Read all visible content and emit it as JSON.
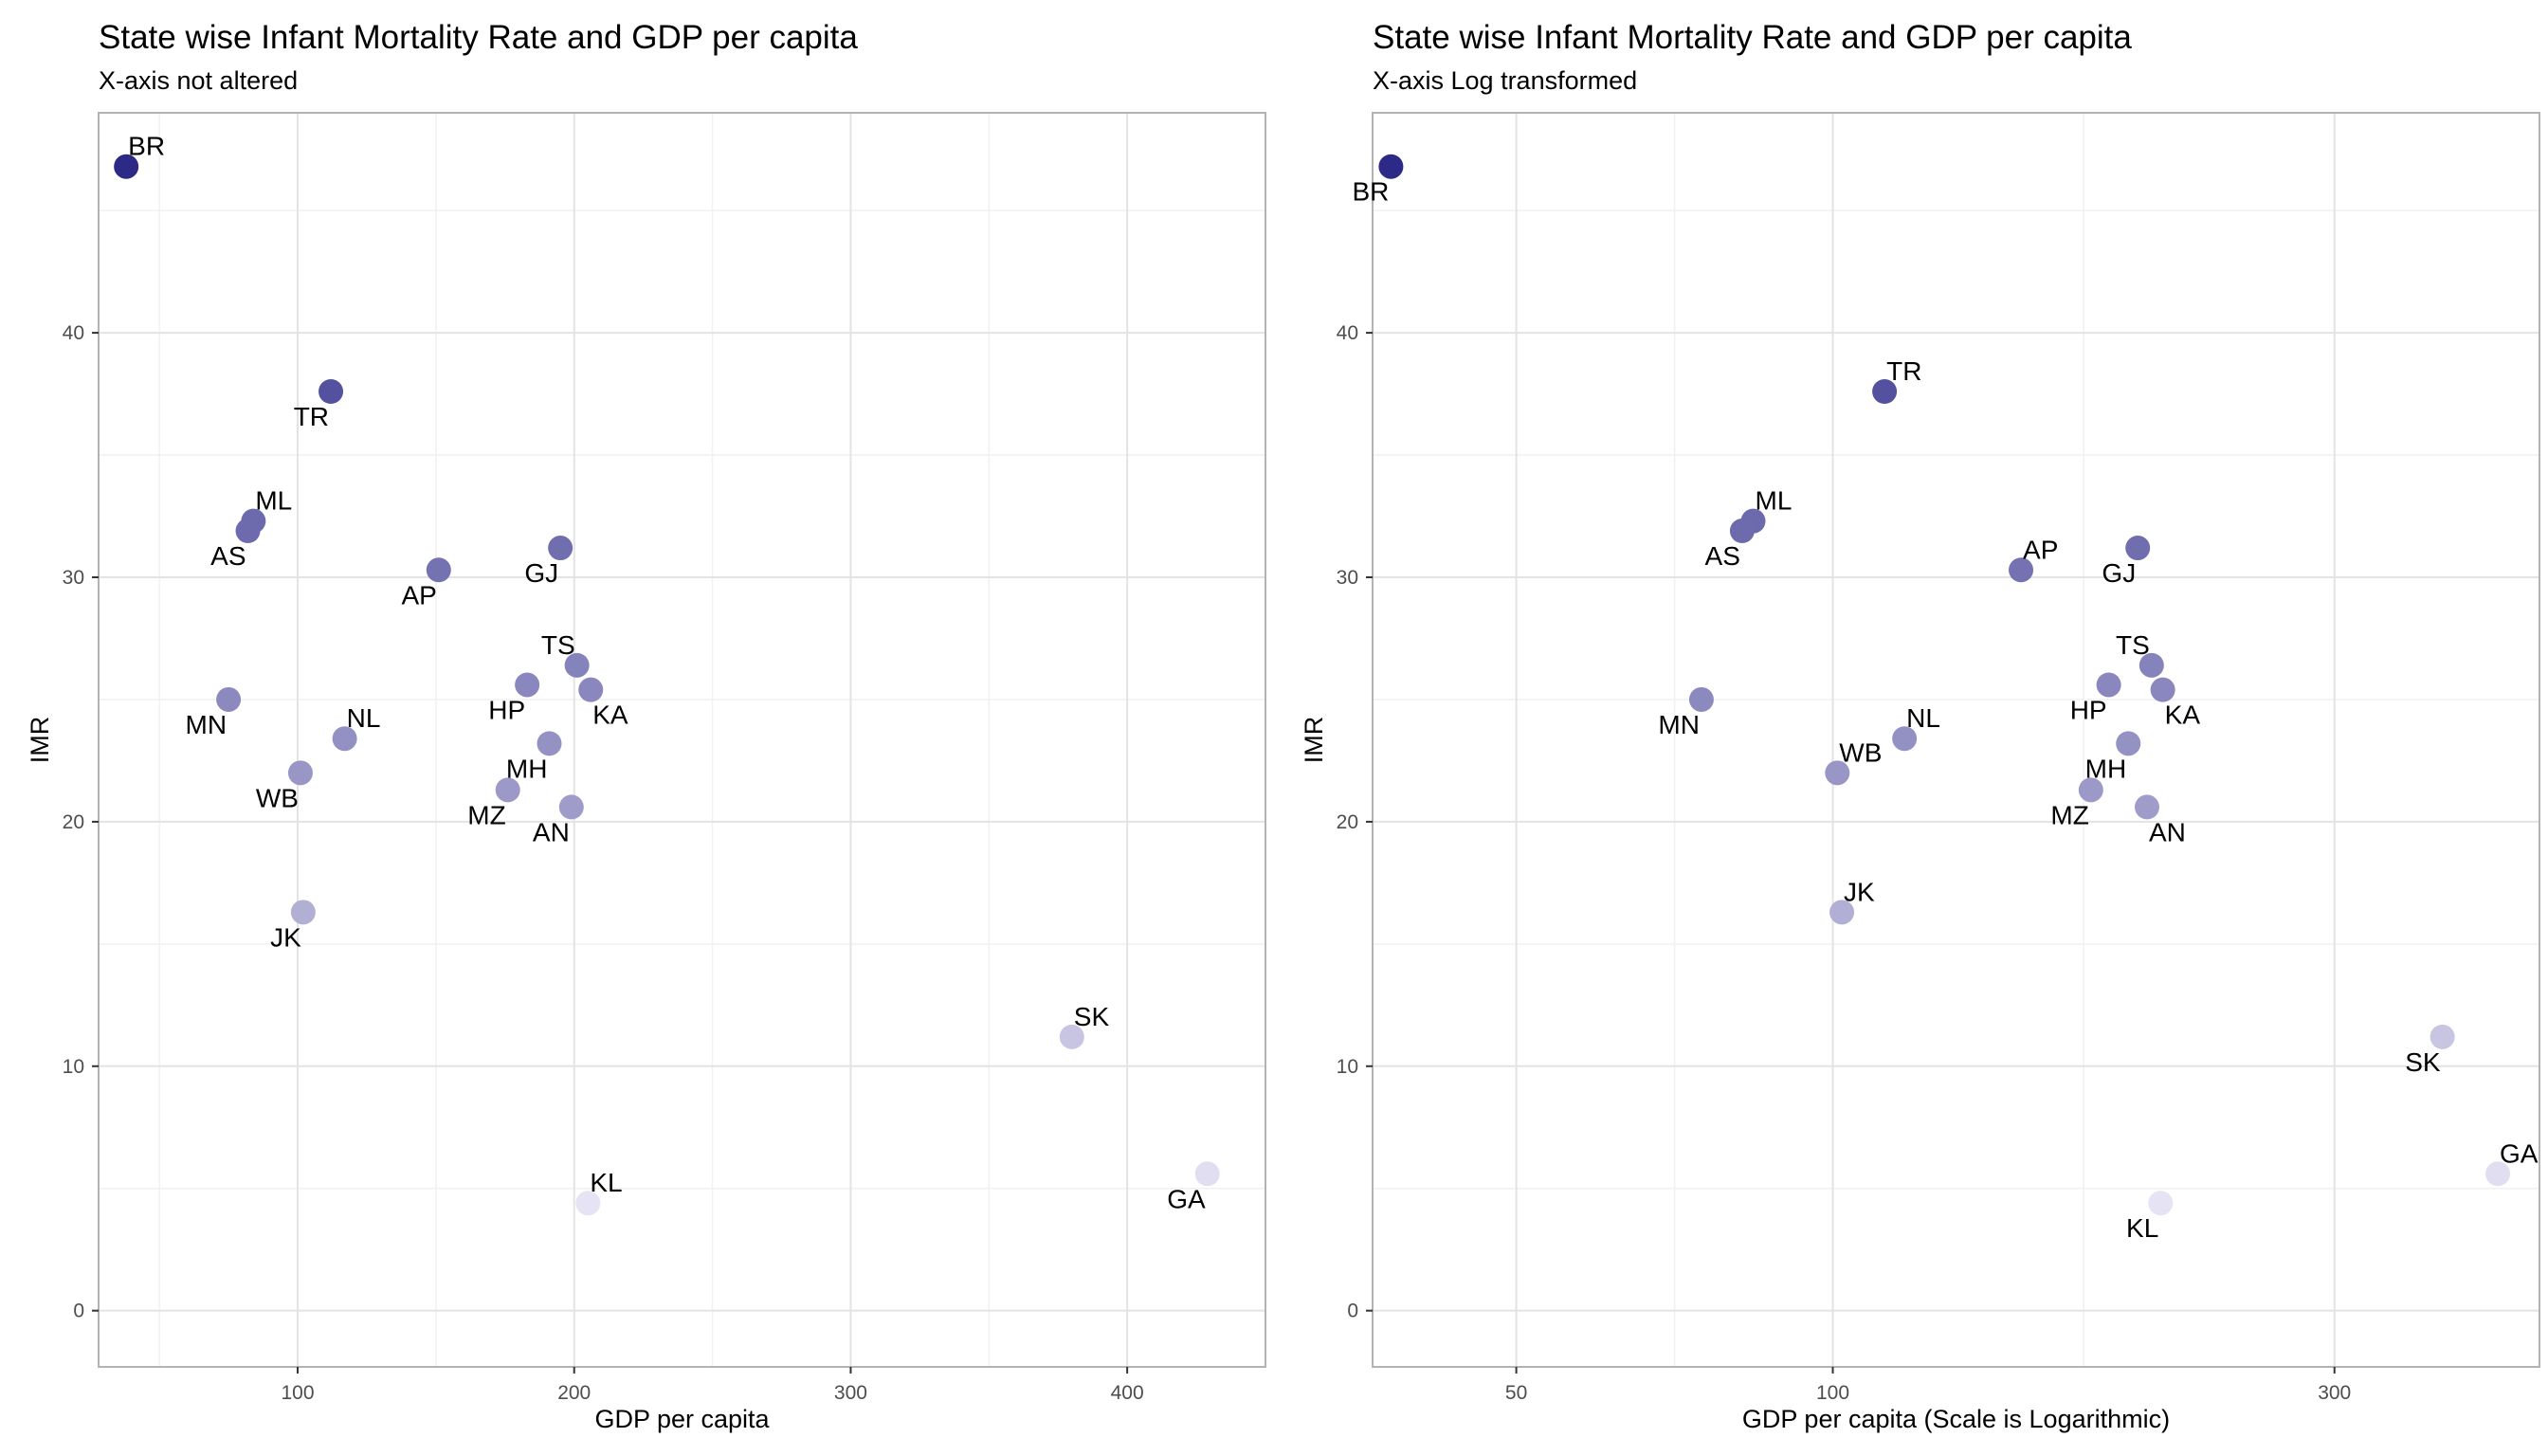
{
  "chart_data": [
    {
      "type": "scatter",
      "title": "State wise Infant Mortality Rate and GDP per capita",
      "subtitle": "X-axis not altered",
      "xlabel": "GDP per capita",
      "ylabel": "IMR",
      "xscale": "linear",
      "xlim": [
        28,
        450
      ],
      "ylim": [
        -2.3,
        49
      ],
      "xticks": [
        100,
        200,
        300,
        400
      ],
      "yticks": [
        0,
        10,
        20,
        30,
        40
      ],
      "grid": true,
      "points": [
        {
          "label": "BR",
          "x": 38,
          "y": 46.8,
          "anchor": "above-right"
        },
        {
          "label": "TR",
          "x": 112,
          "y": 37.6,
          "anchor": "below-left"
        },
        {
          "label": "ML",
          "x": 84,
          "y": 32.3,
          "anchor": "above-right"
        },
        {
          "label": "AS",
          "x": 82,
          "y": 31.9,
          "anchor": "below-left"
        },
        {
          "label": "AP",
          "x": 151,
          "y": 30.3,
          "anchor": "below-left"
        },
        {
          "label": "GJ",
          "x": 195,
          "y": 31.2,
          "anchor": "below-left"
        },
        {
          "label": "TS",
          "x": 201,
          "y": 26.4,
          "anchor": "above-left"
        },
        {
          "label": "HP",
          "x": 183,
          "y": 25.6,
          "anchor": "below-left"
        },
        {
          "label": "KA",
          "x": 206,
          "y": 25.4,
          "anchor": "below-right"
        },
        {
          "label": "MN",
          "x": 75,
          "y": 25.0,
          "anchor": "below-left"
        },
        {
          "label": "NL",
          "x": 117,
          "y": 23.4,
          "anchor": "above-right"
        },
        {
          "label": "MH",
          "x": 191,
          "y": 23.2,
          "anchor": "below-left"
        },
        {
          "label": "WB",
          "x": 101,
          "y": 22.0,
          "anchor": "below-left"
        },
        {
          "label": "MZ",
          "x": 176,
          "y": 21.3,
          "anchor": "below-left"
        },
        {
          "label": "AN",
          "x": 199,
          "y": 20.6,
          "anchor": "below-left"
        },
        {
          "label": "JK",
          "x": 102,
          "y": 16.3,
          "anchor": "below-left"
        },
        {
          "label": "SK",
          "x": 380,
          "y": 11.2,
          "anchor": "above-right"
        },
        {
          "label": "KL",
          "x": 205,
          "y": 4.4,
          "anchor": "above-right"
        },
        {
          "label": "GA",
          "x": 429,
          "y": 5.6,
          "anchor": "below-left"
        }
      ]
    },
    {
      "type": "scatter",
      "title": "State wise Infant Mortality Rate and GDP per capita",
      "subtitle": "X-axis Log transformed",
      "xlabel": "GDP per capita (Scale is Logarithmic)",
      "ylabel": "IMR",
      "xscale": "log",
      "xlim": [
        36.5,
        470
      ],
      "ylim": [
        -2.3,
        49
      ],
      "xticks": [
        50,
        100,
        300
      ],
      "yticks": [
        0,
        10,
        20,
        30,
        40
      ],
      "grid": true,
      "points": [
        {
          "label": "BR",
          "x": 38,
          "y": 46.8,
          "anchor": "below-left"
        },
        {
          "label": "TR",
          "x": 112,
          "y": 37.6,
          "anchor": "above-right"
        },
        {
          "label": "ML",
          "x": 84,
          "y": 32.3,
          "anchor": "above-right"
        },
        {
          "label": "AS",
          "x": 82,
          "y": 31.9,
          "anchor": "below-left"
        },
        {
          "label": "AP",
          "x": 151,
          "y": 30.3,
          "anchor": "above-right"
        },
        {
          "label": "GJ",
          "x": 195,
          "y": 31.2,
          "anchor": "below-left"
        },
        {
          "label": "TS",
          "x": 201,
          "y": 26.4,
          "anchor": "above-left"
        },
        {
          "label": "HP",
          "x": 183,
          "y": 25.6,
          "anchor": "below-left"
        },
        {
          "label": "KA",
          "x": 206,
          "y": 25.4,
          "anchor": "below-right"
        },
        {
          "label": "MN",
          "x": 75,
          "y": 25.0,
          "anchor": "below-left"
        },
        {
          "label": "NL",
          "x": 117,
          "y": 23.4,
          "anchor": "above-right"
        },
        {
          "label": "MH",
          "x": 191,
          "y": 23.2,
          "anchor": "below-left"
        },
        {
          "label": "WB",
          "x": 101,
          "y": 22.0,
          "anchor": "above-right"
        },
        {
          "label": "MZ",
          "x": 176,
          "y": 21.3,
          "anchor": "below-left"
        },
        {
          "label": "AN",
          "x": 199,
          "y": 20.6,
          "anchor": "below-right"
        },
        {
          "label": "JK",
          "x": 102,
          "y": 16.3,
          "anchor": "above-right"
        },
        {
          "label": "SK",
          "x": 380,
          "y": 11.2,
          "anchor": "below-left"
        },
        {
          "label": "KL",
          "x": 205,
          "y": 4.4,
          "anchor": "below-left"
        },
        {
          "label": "GA",
          "x": 429,
          "y": 5.6,
          "anchor": "above-right"
        }
      ]
    }
  ],
  "colors": {
    "imr_high": "#2c2a86",
    "imr_low": "#e6e3f4",
    "panel_border": "#b3b3b3",
    "grid_major": "#e3e3e3",
    "grid_minor": "#f1f1f1",
    "tick_text": "#4d4d4d"
  }
}
